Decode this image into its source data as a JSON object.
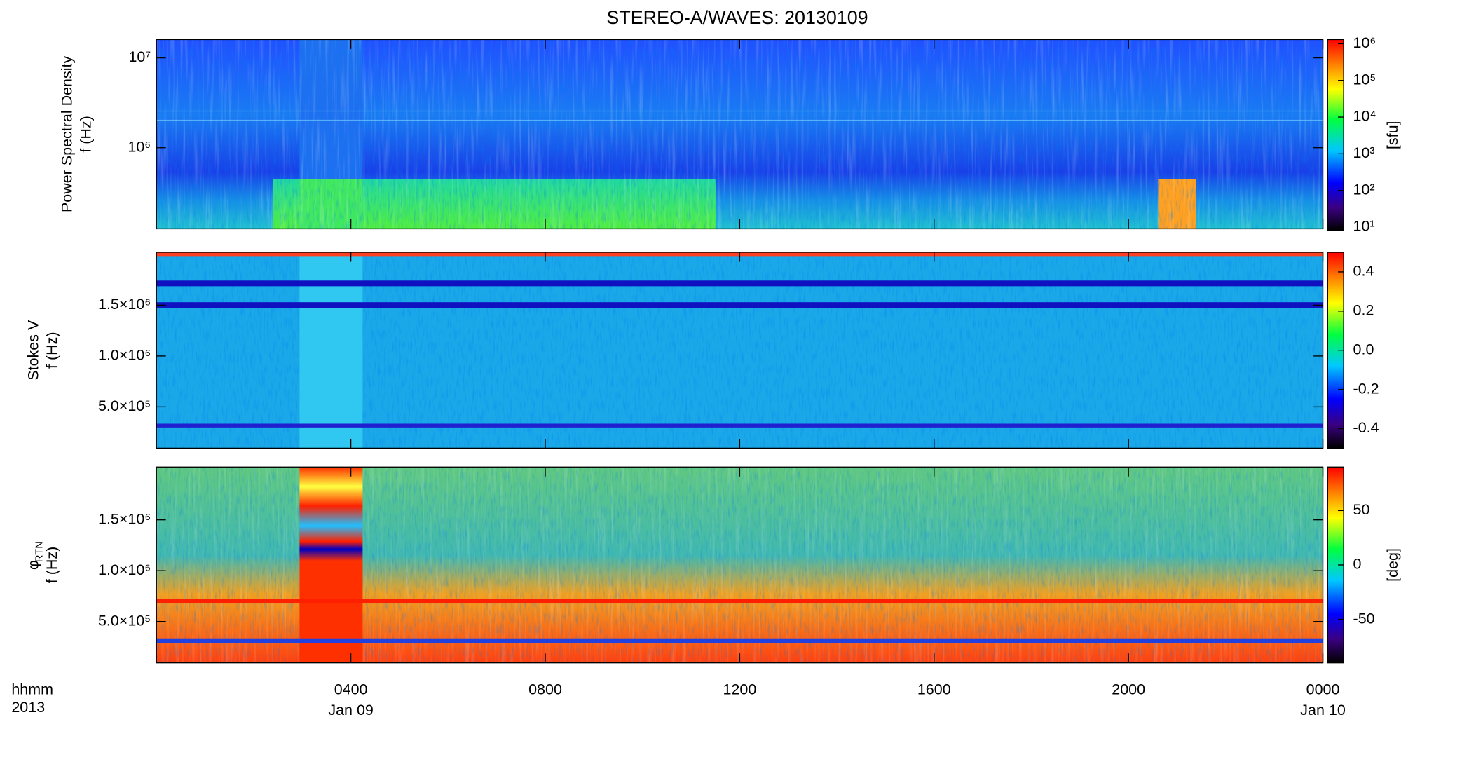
{
  "title": "STEREO-A/WAVES: 20130109",
  "x_axis": {
    "xlim": [
      0,
      24
    ],
    "xticks": [
      {
        "value": 4,
        "label": "0400"
      },
      {
        "value": 8,
        "label": "0800"
      },
      {
        "value": 12,
        "label": "1200"
      },
      {
        "value": 16,
        "label": "1600"
      },
      {
        "value": 20,
        "label": "2000"
      },
      {
        "value": 24,
        "label": "0000"
      }
    ],
    "dates": [
      {
        "value": 4,
        "label": "Jan 09"
      },
      {
        "value": 24,
        "label": "Jan 10"
      }
    ],
    "format_label": "hhmm",
    "year_label": "2013"
  },
  "chart_data": [
    {
      "type": "spectrogram",
      "ylabel": [
        "Power Spectral Density",
        "f (Hz)"
      ],
      "log_y": true,
      "ylim": [
        125000,
        16000000
      ],
      "yticks": [
        {
          "value": 1000000,
          "label": "10⁶"
        },
        {
          "value": 10000000,
          "label": "10⁷"
        }
      ],
      "colorbar_label": "[sfu]",
      "colorbar_log": true,
      "colorbar_lim": [
        8,
        1300000
      ],
      "colorbar_ticks": [
        {
          "value": 10,
          "label": "10¹"
        },
        {
          "value": 100,
          "label": "10²"
        },
        {
          "value": 1000,
          "label": "10³"
        },
        {
          "value": 10000,
          "label": "10⁴"
        },
        {
          "value": 100000,
          "label": "10⁵"
        },
        {
          "value": 1000000,
          "label": "10⁶"
        }
      ]
    },
    {
      "type": "spectrogram",
      "ylabel": [
        "Stokes V",
        "f (Hz)"
      ],
      "log_y": false,
      "ylim": [
        93000,
        2020000
      ],
      "yticks": [
        {
          "value": 500000,
          "label": "5.0×10⁵"
        },
        {
          "value": 1000000,
          "label": "1.0×10⁶"
        },
        {
          "value": 1500000,
          "label": "1.5×10⁶"
        }
      ],
      "colorbar_log": false,
      "colorbar_lim": [
        -0.5,
        0.5
      ],
      "colorbar_ticks": [
        -0.4,
        -0.2,
        {
          "value": 0,
          "label": "0.0"
        },
        0.2,
        0.4
      ]
    },
    {
      "type": "spectrogram",
      "ylabel": [
        "φ",
        "f (Hz)"
      ],
      "ylabel_subscript": "RTN",
      "log_y": false,
      "ylim": [
        93000,
        2020000
      ],
      "yticks": [
        {
          "value": 500000,
          "label": "5.0×10⁵"
        },
        {
          "value": 1000000,
          "label": "1.0×10⁶"
        },
        {
          "value": 1500000,
          "label": "1.5×10⁶"
        }
      ],
      "colorbar_label": "[deg]",
      "colorbar_log": false,
      "colorbar_lim": [
        -90,
        90
      ],
      "colorbar_ticks": [
        -50,
        0,
        50
      ]
    }
  ]
}
